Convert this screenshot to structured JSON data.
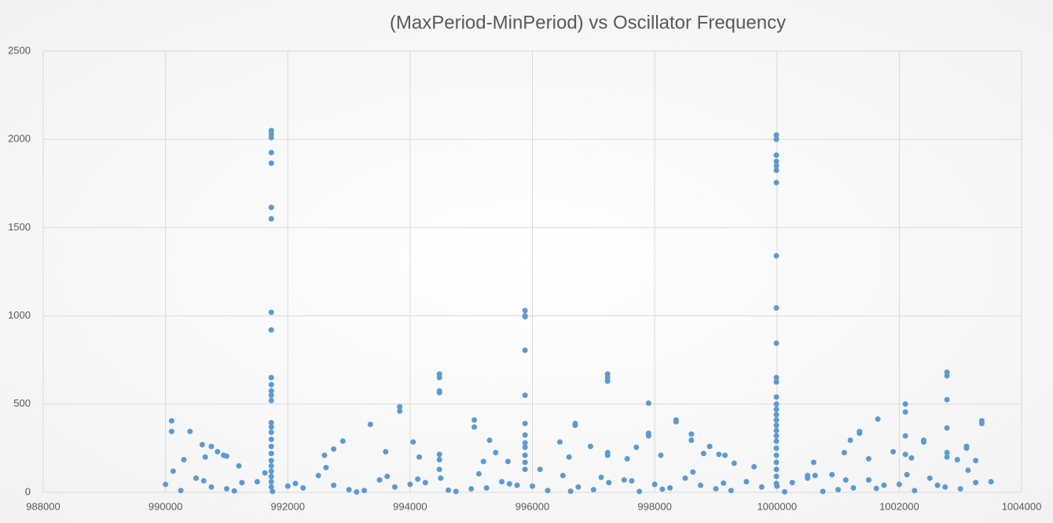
{
  "chart_data": {
    "type": "scatter",
    "title": "(MaxPeriod-MinPeriod) vs Oscillator Frequency",
    "color": "#5b9bd5",
    "grid": true,
    "xlim": [
      988000,
      1004000
    ],
    "xticks": [
      988000,
      990000,
      992000,
      994000,
      996000,
      998000,
      1000000,
      1002000,
      1004000
    ],
    "ylim": [
      0,
      2500
    ],
    "yticks": [
      0,
      500,
      1000,
      1500,
      2000,
      2500
    ],
    "x": [
      991730,
      991730,
      991730,
      991730,
      991730,
      991730,
      991730,
      991730,
      991730,
      991730,
      991730,
      991730,
      991730,
      991730,
      991730,
      991730,
      991730,
      991730,
      991730,
      991730,
      991730,
      991730,
      991730,
      991730,
      991730,
      991730,
      999990,
      999990,
      999990,
      999990,
      999990,
      999990,
      999990,
      999990,
      999990,
      999990,
      999990,
      999990,
      999990,
      999990,
      999990,
      999990,
      999990,
      999990,
      999990,
      999990,
      999990,
      999990,
      999990,
      999990,
      999990,
      999990,
      999990,
      995880,
      995880,
      995880,
      995880,
      995880,
      995880,
      995880,
      995880,
      995880,
      995880,
      995880,
      995880,
      994480,
      994480,
      994480,
      994480,
      994480,
      994480,
      994480,
      997230,
      997230,
      997230,
      997230,
      997230,
      1002780,
      1002780,
      1002780,
      1002780,
      1002780,
      1002780,
      1002100,
      1002100,
      1002100,
      1002100,
      990100,
      990100,
      990400,
      990600,
      990750,
      990850,
      991000,
      990650,
      990950,
      990300,
      991200,
      993350,
      993830,
      993830,
      993600,
      994050,
      994150,
      992900,
      992750,
      992600,
      995050,
      995050,
      995300,
      995200,
      995400,
      995600,
      996450,
      996700,
      996700,
      996950,
      996600,
      997550,
      997700,
      997900,
      997900,
      997900,
      998100,
      998350,
      998350,
      998600,
      998600,
      998800,
      998900,
      999050,
      999150,
      999300,
      1001200,
      1001100,
      1001350,
      1001350,
      1001650,
      1001900,
      1002400,
      1002400,
      1002200,
      1003100,
      1003100,
      1003350,
      1003350,
      1003250,
      1002950,
      1000600,
      1001500,
      1000900,
      1000500,
      990000,
      990500,
      991000,
      991500,
      992000,
      992500,
      993000,
      993500,
      994000,
      994500,
      995000,
      995500,
      996000,
      996500,
      997000,
      997500,
      998000,
      998500,
      999000,
      999500,
      1000000,
      1000500,
      1001000,
      1001500,
      1002000,
      1002500,
      1003000,
      1003500,
      990250,
      990750,
      991250,
      991750,
      992250,
      992750,
      993250,
      993750,
      994250,
      994750,
      995250,
      995750,
      996250,
      996750,
      997250,
      997750,
      998250,
      998750,
      999250,
      999750,
      1000250,
      1000750,
      1001250,
      1001750,
      1002250,
      1002750,
      1003250,
      990125,
      990625,
      991125,
      991625,
      992125,
      992625,
      993125,
      993625,
      994125,
      994625,
      995125,
      995625,
      996125,
      996625,
      997125,
      997625,
      998125,
      998625,
      999125,
      999625,
      1000125,
      1000625,
      1001125,
      1001625,
      1002125,
      1002625,
      1003125
    ],
    "values": [
      2050,
      2030,
      2010,
      1925,
      1865,
      1615,
      1550,
      1020,
      920,
      650,
      610,
      575,
      550,
      520,
      395,
      370,
      340,
      300,
      260,
      220,
      180,
      150,
      120,
      90,
      60,
      30,
      2025,
      2000,
      1910,
      1875,
      1850,
      1825,
      1755,
      1340,
      1045,
      845,
      650,
      625,
      540,
      500,
      470,
      440,
      410,
      380,
      350,
      320,
      290,
      250,
      210,
      170,
      130,
      90,
      50,
      1030,
      1000,
      995,
      805,
      550,
      390,
      325,
      280,
      255,
      210,
      170,
      130,
      670,
      650,
      575,
      565,
      215,
      185,
      130,
      670,
      650,
      630,
      225,
      210,
      680,
      660,
      525,
      365,
      225,
      200,
      500,
      455,
      320,
      215,
      405,
      345,
      345,
      270,
      260,
      230,
      205,
      200,
      210,
      185,
      150,
      385,
      485,
      460,
      230,
      285,
      200,
      290,
      245,
      210,
      410,
      370,
      295,
      175,
      225,
      175,
      285,
      390,
      380,
      260,
      200,
      190,
      255,
      505,
      335,
      320,
      210,
      410,
      400,
      330,
      295,
      220,
      260,
      215,
      210,
      165,
      295,
      225,
      345,
      335,
      415,
      230,
      295,
      285,
      195,
      260,
      250,
      405,
      390,
      180,
      185,
      170,
      190,
      100,
      80,
      45,
      80,
      20,
      60,
      35,
      95,
      15,
      70,
      45,
      80,
      20,
      60,
      35,
      95,
      15,
      70,
      45,
      80,
      20,
      60,
      35,
      95,
      15,
      70,
      45,
      80,
      20,
      60,
      10,
      30,
      55,
      5,
      25,
      40,
      10,
      30,
      55,
      5,
      25,
      40,
      10,
      30,
      55,
      5,
      25,
      40,
      10,
      30,
      55,
      5,
      25,
      40,
      10,
      30,
      55,
      120,
      65,
      8,
      110,
      50,
      140,
      2,
      90,
      75,
      12,
      105,
      48,
      130,
      6,
      85,
      65,
      18,
      115,
      52,
      145,
      3,
      95,
      70,
      22,
      100,
      40,
      125
    ]
  }
}
